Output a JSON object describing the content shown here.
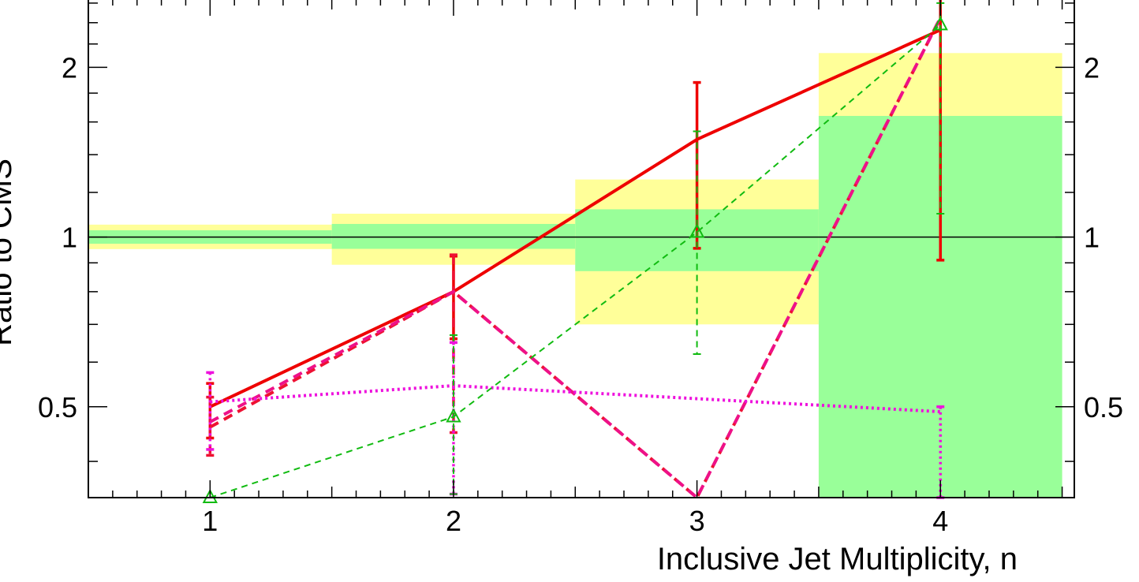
{
  "chart_data": {
    "type": "line",
    "xlabel": "Inclusive Jet Multiplicity, n",
    "ylabel": "Ratio to CMS",
    "x_ticks": [
      "1",
      "2",
      "3",
      "4"
    ],
    "y_ticks": [
      "0.5",
      "1",
      "2"
    ],
    "xlim": [
      0.5,
      4.55
    ],
    "ylim": [
      0.345,
      2.65
    ],
    "log_y": true,
    "grid": false,
    "reference_line": 1.0,
    "bands": [
      {
        "x0": 0.5,
        "x1": 1.5,
        "green": [
          0.973,
          1.028
        ],
        "yellow": [
          0.952,
          1.052
        ]
      },
      {
        "x0": 1.5,
        "x1": 2.5,
        "green": [
          0.953,
          1.055
        ],
        "yellow": [
          0.893,
          1.1
        ]
      },
      {
        "x0": 2.5,
        "x1": 3.5,
        "green": [
          0.87,
          1.12
        ],
        "yellow": [
          0.7,
          1.265
        ]
      },
      {
        "x0": 3.5,
        "x1": 4.5,
        "green": [
          0.345,
          1.64
        ],
        "yellow": [
          0.345,
          2.12
        ]
      }
    ],
    "series": [
      {
        "style": "solid-red",
        "x": [
          1,
          2,
          3,
          4
        ],
        "y": [
          0.5,
          0.8,
          1.49,
          2.33
        ],
        "err_low": [
          0.44,
          0.66,
          0.955,
          0.91
        ],
        "err_high": [
          0.55,
          0.925,
          1.88,
          2.7
        ]
      },
      {
        "style": "dashed-red",
        "x": [
          1,
          2,
          3,
          4
        ],
        "y": [
          0.46,
          0.8,
          0.345,
          2.45
        ],
        "err_low": [
          0.41,
          0.45,
          null,
          null
        ],
        "err_high": [
          0.52,
          0.93,
          null,
          null
        ]
      },
      {
        "style": "dashed-magenta",
        "x": [
          1,
          2,
          3,
          4
        ],
        "y": [
          0.47,
          0.8,
          0.345,
          2.45
        ],
        "err_low": [
          null,
          null,
          null,
          null
        ],
        "err_high": [
          null,
          null,
          null,
          null
        ]
      },
      {
        "style": "dotted-magenta",
        "x": [
          1,
          2,
          4
        ],
        "y": [
          0.51,
          0.545,
          0.49
        ],
        "err_low": [
          0.42,
          0.35,
          0.345
        ],
        "err_high": [
          0.575,
          0.65,
          0.5
        ]
      },
      {
        "style": "dashed-green-triangles",
        "x": [
          1,
          2,
          3,
          4
        ],
        "y": [
          0.345,
          0.48,
          1.02,
          2.38
        ],
        "err_low": [
          null,
          0.35,
          0.62,
          1.1
        ],
        "err_high": [
          null,
          0.67,
          1.54,
          2.6
        ]
      }
    ]
  }
}
